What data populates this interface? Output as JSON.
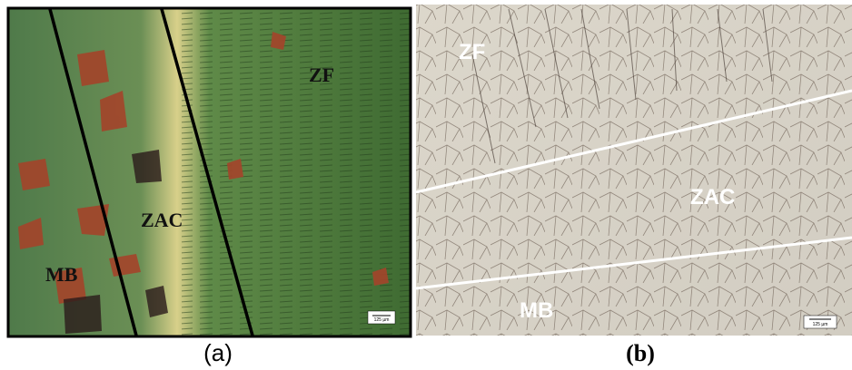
{
  "panels": [
    {
      "labels": [
        "ZF",
        "ZAC",
        "MB"
      ],
      "scale_bar": "125 µm",
      "caption": "(a)"
    },
    {
      "labels": [
        "ZF",
        "ZAC",
        "MB"
      ],
      "scale_bar": "125 µm",
      "caption": "(b)"
    }
  ]
}
